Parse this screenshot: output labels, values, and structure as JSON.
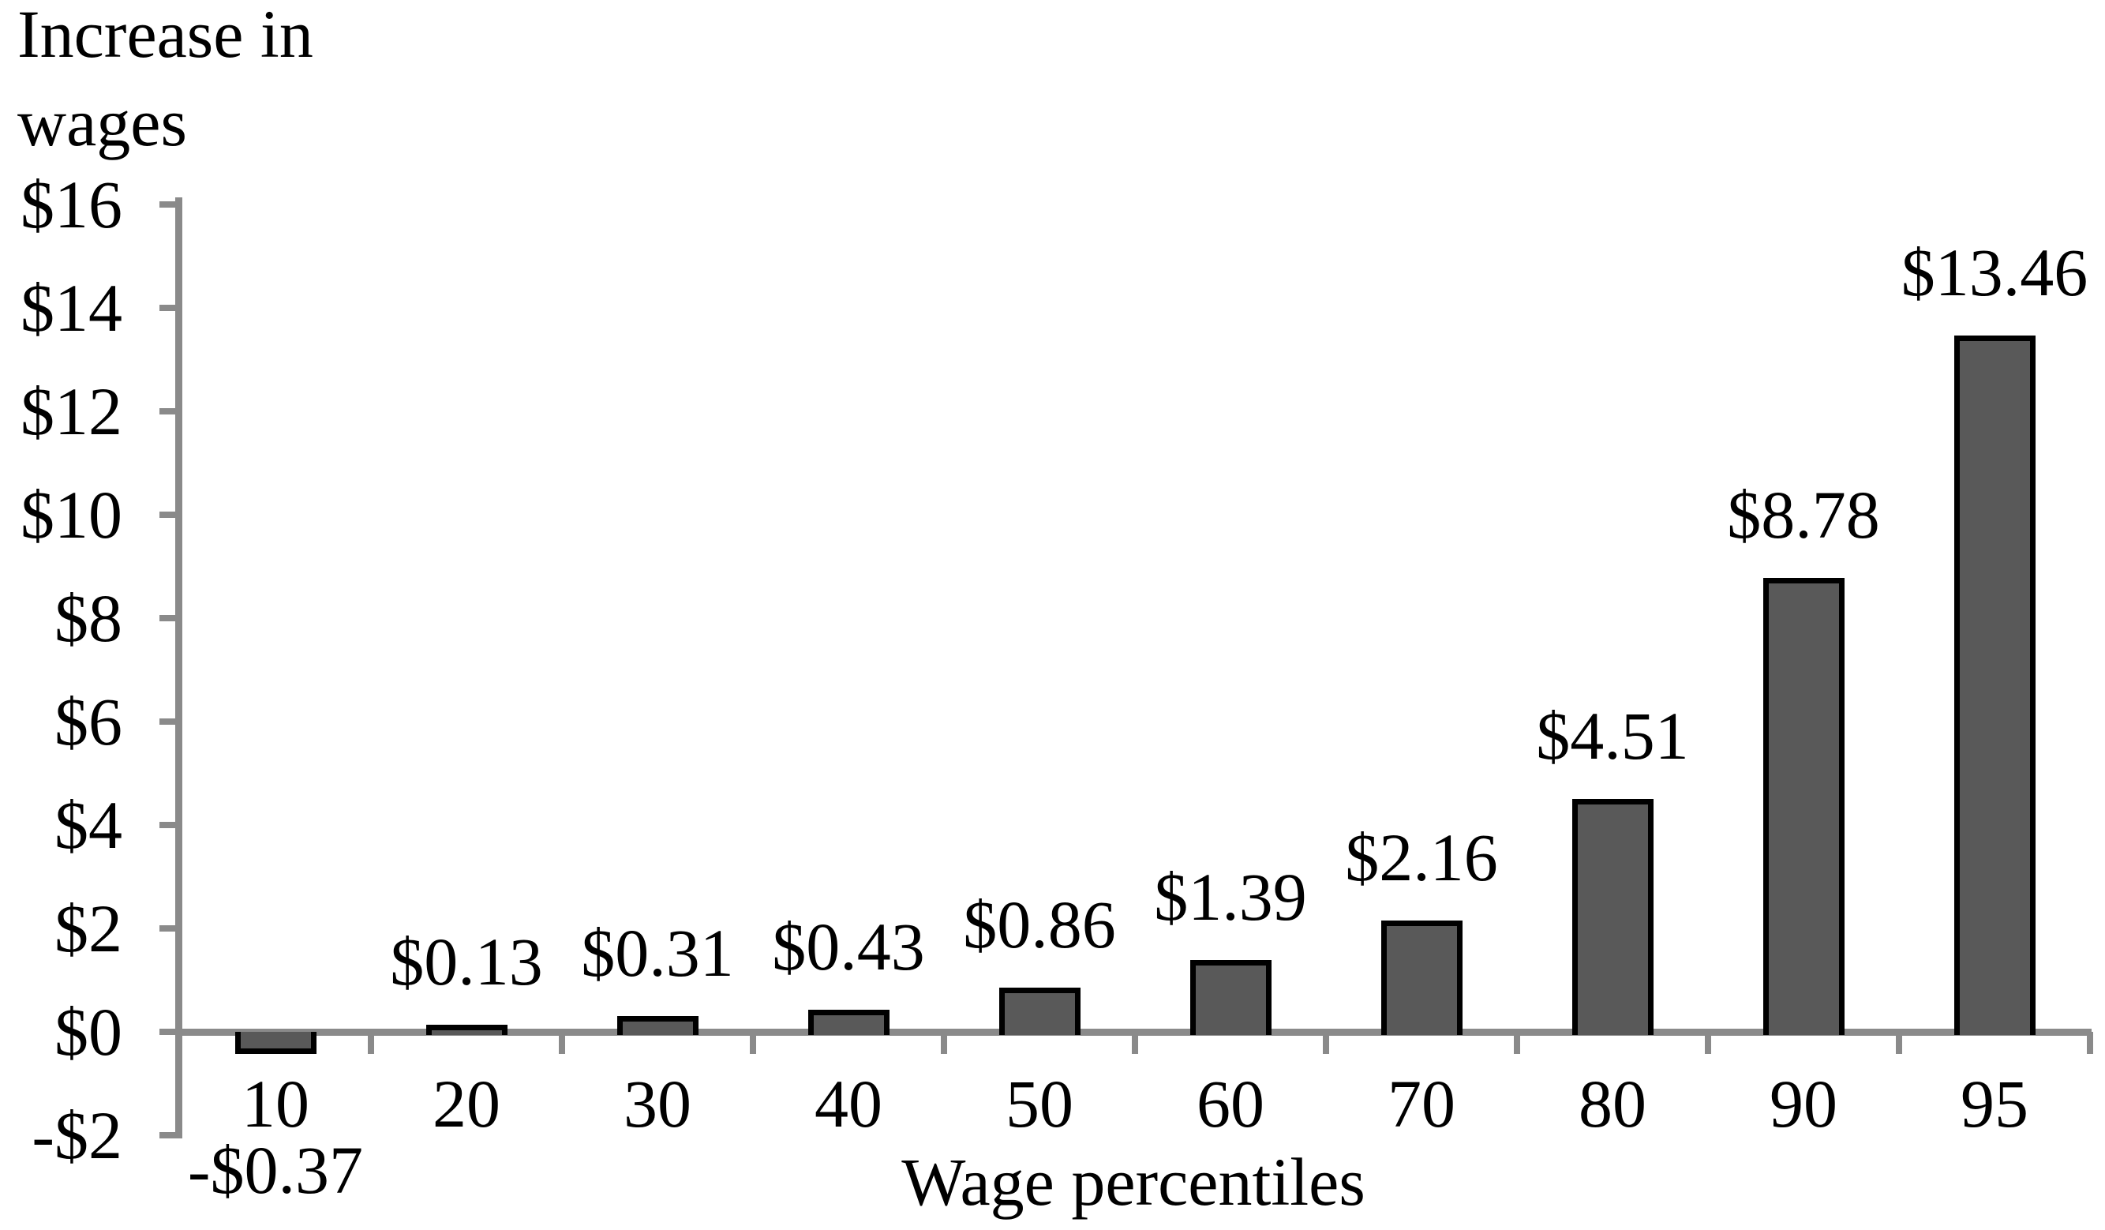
{
  "chart_data": {
    "type": "bar",
    "title": "",
    "ylabel": "Increase in wages",
    "ylabel_lines": [
      "Increase in",
      "wages"
    ],
    "xlabel": "Wage percentiles",
    "categories": [
      "10",
      "20",
      "30",
      "40",
      "50",
      "60",
      "70",
      "80",
      "90",
      "95"
    ],
    "values": [
      -0.37,
      0.13,
      0.31,
      0.43,
      0.86,
      1.39,
      2.16,
      4.51,
      8.78,
      13.46
    ],
    "value_labels": [
      "-$0.37",
      "$0.13",
      "$0.31",
      "$0.43",
      "$0.86",
      "$1.39",
      "$2.16",
      "$4.51",
      "$8.78",
      "$13.46"
    ],
    "y_ticks": [
      {
        "label": "$16",
        "value": 16
      },
      {
        "label": "$14",
        "value": 14
      },
      {
        "label": "$12",
        "value": 12
      },
      {
        "label": "$10",
        "value": 10
      },
      {
        "label": "$8",
        "value": 8
      },
      {
        "label": "$6",
        "value": 6
      },
      {
        "label": "$4",
        "value": 4
      },
      {
        "label": "$2",
        "value": 2
      },
      {
        "label": "$0",
        "value": 0
      },
      {
        "label": "-$2",
        "value": -2
      }
    ],
    "ylim": [
      -2,
      16
    ],
    "y_step": 2,
    "grid": false,
    "legend": false,
    "bar_label_position": "outside-end",
    "colors": {
      "bar_fill": "#595959",
      "bar_border": "#000000",
      "axis": "#8A8A8A",
      "text": "#000000",
      "background": "#FFFFFF"
    }
  }
}
